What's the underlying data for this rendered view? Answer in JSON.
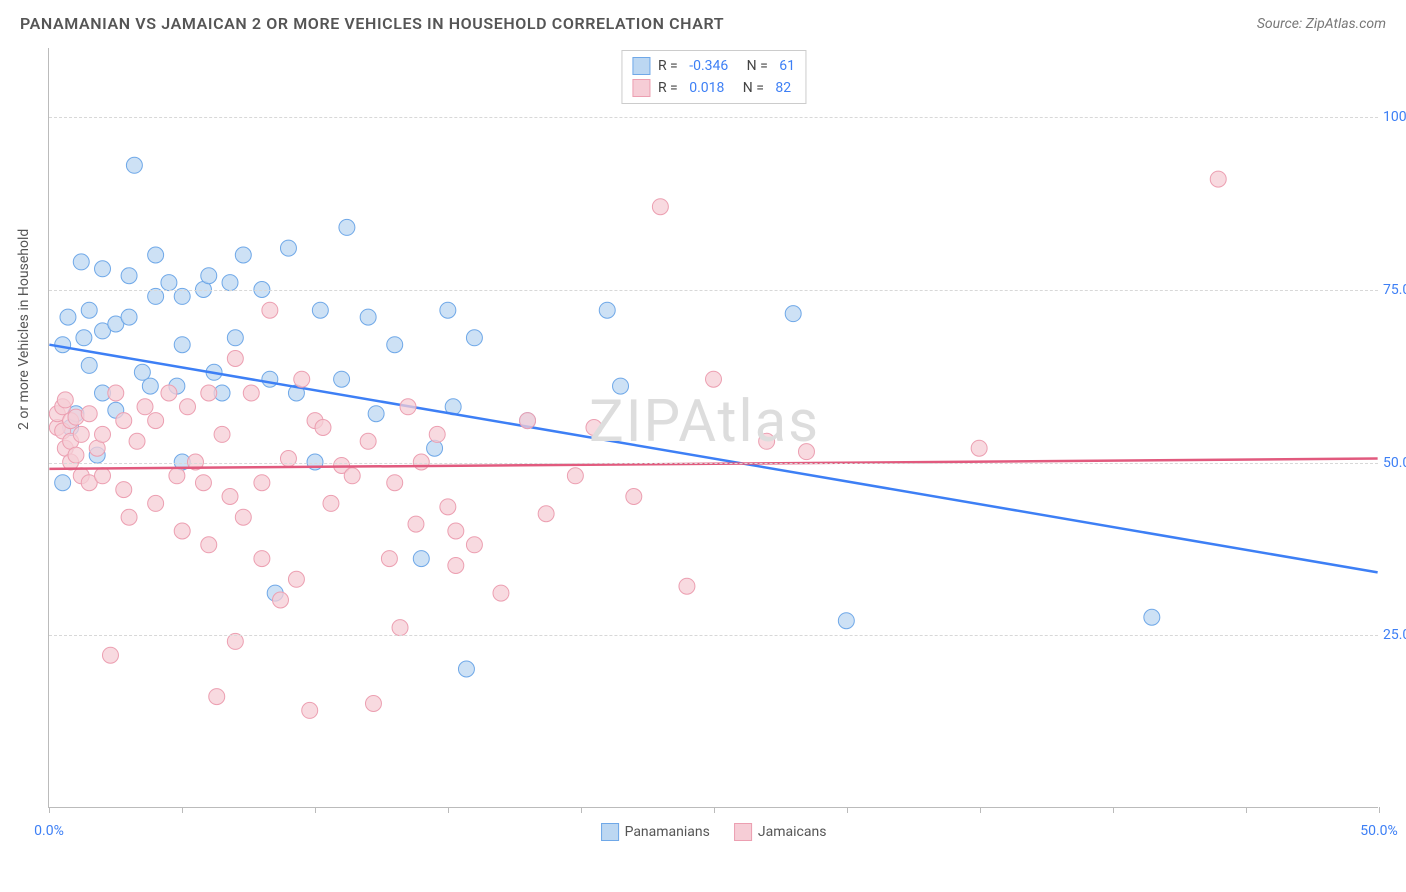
{
  "header": {
    "title": "PANAMANIAN VS JAMAICAN 2 OR MORE VEHICLES IN HOUSEHOLD CORRELATION CHART",
    "source": "Source: ZipAtlas.com"
  },
  "chart": {
    "type": "scatter",
    "ylabel": "2 or more Vehicles in Household",
    "watermark": "ZIPAtlas",
    "xlim": [
      0,
      50
    ],
    "ylim": [
      0,
      110
    ],
    "xticks": [
      0,
      5,
      10,
      15,
      20,
      25,
      30,
      35,
      40,
      45,
      50
    ],
    "xtick_labels": {
      "0": "0.0%",
      "50": "50.0%"
    },
    "yticks": [
      25,
      50,
      75,
      100
    ],
    "ytick_labels": [
      "25.0%",
      "50.0%",
      "75.0%",
      "100.0%"
    ],
    "background_color": "#ffffff",
    "grid_color": "#d8d8d8",
    "axis_color": "#bbbbbb",
    "tick_label_color": "#3d7ff5",
    "series": [
      {
        "name": "Panamanians",
        "fill": "#bcd7f2",
        "stroke": "#6fa8e8",
        "line_stroke": "#3d7ff5",
        "R": "-0.346",
        "N": "61",
        "trend": {
          "x1": 0,
          "y1": 67,
          "x2": 50,
          "y2": 34
        },
        "points": [
          [
            0.5,
            47
          ],
          [
            0.5,
            67
          ],
          [
            0.7,
            71
          ],
          [
            0.8,
            55
          ],
          [
            1.0,
            57
          ],
          [
            1.2,
            79
          ],
          [
            1.3,
            68
          ],
          [
            1.5,
            64
          ],
          [
            1.5,
            72
          ],
          [
            1.8,
            51
          ],
          [
            2.0,
            78
          ],
          [
            2.0,
            69
          ],
          [
            2.0,
            60
          ],
          [
            2.5,
            70
          ],
          [
            2.5,
            57.5
          ],
          [
            3.0,
            77
          ],
          [
            3.0,
            71
          ],
          [
            3.2,
            93
          ],
          [
            3.5,
            63
          ],
          [
            3.8,
            61
          ],
          [
            4.0,
            80
          ],
          [
            4.0,
            74
          ],
          [
            4.5,
            76
          ],
          [
            4.8,
            61
          ],
          [
            5.0,
            74
          ],
          [
            5.0,
            67
          ],
          [
            5.0,
            50
          ],
          [
            5.8,
            75
          ],
          [
            6.0,
            77
          ],
          [
            6.2,
            63
          ],
          [
            6.5,
            60
          ],
          [
            6.8,
            76
          ],
          [
            7.0,
            68
          ],
          [
            7.3,
            80
          ],
          [
            8.0,
            75
          ],
          [
            8.3,
            62
          ],
          [
            8.5,
            31
          ],
          [
            9.0,
            81
          ],
          [
            9.3,
            60
          ],
          [
            10.0,
            50
          ],
          [
            10.2,
            72
          ],
          [
            11.0,
            62
          ],
          [
            11.2,
            84
          ],
          [
            12.0,
            71
          ],
          [
            12.3,
            57
          ],
          [
            13.0,
            67
          ],
          [
            14.0,
            36
          ],
          [
            14.5,
            52
          ],
          [
            15.0,
            72
          ],
          [
            15.2,
            58
          ],
          [
            15.7,
            20
          ],
          [
            16.0,
            68
          ],
          [
            18.0,
            56
          ],
          [
            21.0,
            72
          ],
          [
            21.5,
            61
          ],
          [
            28.0,
            71.5
          ],
          [
            30.0,
            27
          ],
          [
            41.5,
            27.5
          ]
        ]
      },
      {
        "name": "Jamaicans",
        "fill": "#f6cdd6",
        "stroke": "#ec9fb1",
        "line_stroke": "#e15a7e",
        "R": "0.018",
        "N": "82",
        "trend": {
          "x1": 0,
          "y1": 49,
          "x2": 50,
          "y2": 50.5
        },
        "points": [
          [
            0.3,
            55
          ],
          [
            0.3,
            57
          ],
          [
            0.5,
            58
          ],
          [
            0.5,
            54.5
          ],
          [
            0.6,
            59
          ],
          [
            0.6,
            52
          ],
          [
            0.8,
            56
          ],
          [
            0.8,
            53
          ],
          [
            0.8,
            50
          ],
          [
            1.0,
            56.5
          ],
          [
            1.0,
            51
          ],
          [
            1.2,
            48
          ],
          [
            1.2,
            54
          ],
          [
            1.5,
            57
          ],
          [
            1.5,
            47
          ],
          [
            1.8,
            52
          ],
          [
            2.0,
            54
          ],
          [
            2.0,
            48
          ],
          [
            2.3,
            22
          ],
          [
            2.5,
            60
          ],
          [
            2.8,
            46
          ],
          [
            2.8,
            56
          ],
          [
            3.0,
            42
          ],
          [
            3.3,
            53
          ],
          [
            3.6,
            58
          ],
          [
            4.0,
            44
          ],
          [
            4.0,
            56
          ],
          [
            4.5,
            60
          ],
          [
            4.8,
            48
          ],
          [
            5.0,
            40
          ],
          [
            5.2,
            58
          ],
          [
            5.5,
            50
          ],
          [
            5.8,
            47
          ],
          [
            6.0,
            38
          ],
          [
            6.0,
            60
          ],
          [
            6.3,
            16
          ],
          [
            6.5,
            54
          ],
          [
            6.8,
            45
          ],
          [
            7.0,
            65
          ],
          [
            7.0,
            24
          ],
          [
            7.3,
            42
          ],
          [
            7.6,
            60
          ],
          [
            8.0,
            47
          ],
          [
            8.0,
            36
          ],
          [
            8.3,
            72
          ],
          [
            8.7,
            30
          ],
          [
            9.0,
            50.5
          ],
          [
            9.3,
            33
          ],
          [
            9.5,
            62
          ],
          [
            9.8,
            14
          ],
          [
            10.0,
            56
          ],
          [
            10.3,
            55
          ],
          [
            10.6,
            44
          ],
          [
            11.0,
            49.5
          ],
          [
            11.4,
            48
          ],
          [
            12.0,
            53
          ],
          [
            12.2,
            15
          ],
          [
            12.8,
            36
          ],
          [
            13.0,
            47
          ],
          [
            13.2,
            26
          ],
          [
            13.5,
            58
          ],
          [
            13.8,
            41
          ],
          [
            14.0,
            50
          ],
          [
            14.6,
            54
          ],
          [
            15.0,
            43.5
          ],
          [
            15.3,
            40
          ],
          [
            15.3,
            35
          ],
          [
            16.0,
            38
          ],
          [
            17.0,
            31
          ],
          [
            18.0,
            56
          ],
          [
            18.7,
            42.5
          ],
          [
            19.8,
            48
          ],
          [
            20.5,
            55
          ],
          [
            22.0,
            45
          ],
          [
            23.0,
            87
          ],
          [
            24.0,
            32
          ],
          [
            25.0,
            62
          ],
          [
            27.0,
            53
          ],
          [
            28.5,
            51.5
          ],
          [
            35.0,
            52
          ],
          [
            44.0,
            91
          ]
        ]
      }
    ],
    "legend_bottom": [
      "Panamanians",
      "Jamaicans"
    ]
  }
}
